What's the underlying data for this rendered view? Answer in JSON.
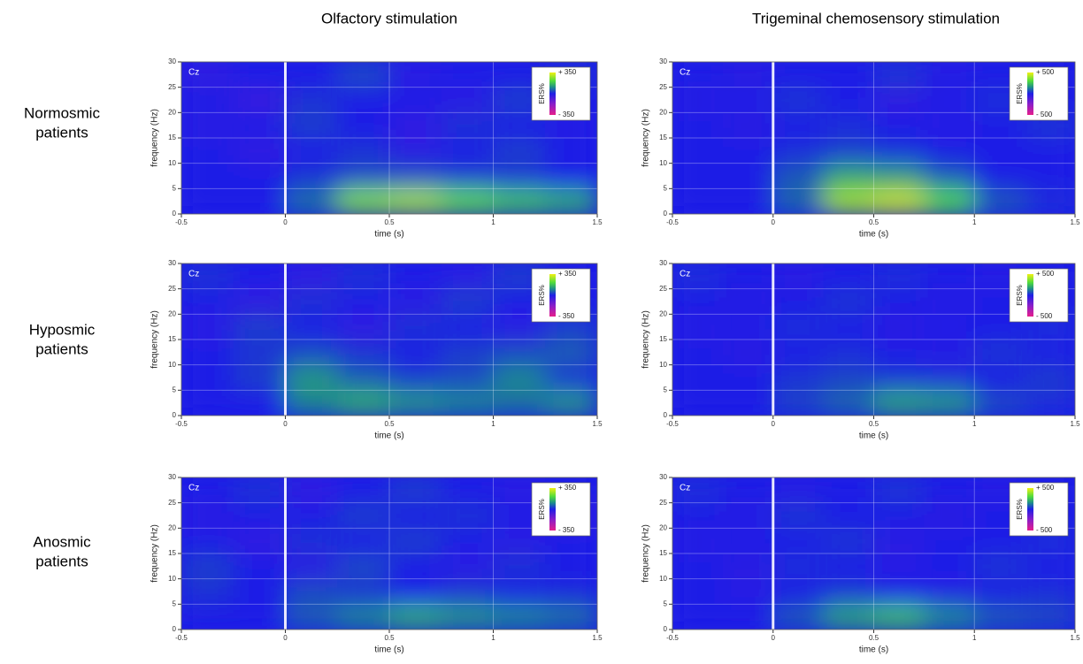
{
  "column_titles": [
    "Olfactory stimulation",
    "Trigeminal chemosensory stimulation"
  ],
  "row_labels": [
    [
      "Normosmic",
      "patients"
    ],
    [
      "Hyposmic",
      "patients"
    ],
    [
      "Anosmic",
      "patients"
    ]
  ],
  "chart_data": [
    {
      "type": "heatmap",
      "annotation": "Cz",
      "xlabel": "time (s)",
      "ylabel": "frequency (Hz)",
      "colorbar_label": "ERS%",
      "clim": [
        -350,
        350
      ],
      "colorbar_ticks": [
        {
          "value": 350,
          "label": "+ 350"
        },
        {
          "value": -350,
          "label": "- 350"
        }
      ],
      "xlim": [
        -0.5,
        1.5
      ],
      "xticks": [
        -0.5,
        0,
        0.5,
        1,
        1.5
      ],
      "ylim": [
        0,
        30
      ],
      "yticks": [
        0,
        5,
        10,
        15,
        20,
        25,
        30
      ],
      "grid": true,
      "x": [
        -0.5,
        -0.25,
        0,
        0.25,
        0.5,
        0.75,
        1,
        1.25,
        1.5
      ],
      "y": [
        0,
        5,
        10,
        15,
        20,
        25,
        30
      ],
      "values": [
        [
          0,
          0,
          80,
          250,
          280,
          220,
          180,
          150
        ],
        [
          0,
          0,
          20,
          40,
          40,
          30,
          20,
          0
        ],
        [
          0,
          -30,
          0,
          20,
          -20,
          0,
          30,
          0
        ],
        [
          -20,
          0,
          30,
          0,
          -30,
          20,
          0,
          -10
        ],
        [
          0,
          -40,
          20,
          0,
          0,
          -20,
          30,
          0
        ],
        [
          -30,
          0,
          0,
          40,
          -20,
          0,
          0,
          20
        ]
      ]
    },
    {
      "type": "heatmap",
      "annotation": "Cz",
      "xlabel": "time (s)",
      "ylabel": "frequency (Hz)",
      "colorbar_label": "ERS%",
      "clim": [
        -500,
        500
      ],
      "colorbar_ticks": [
        {
          "value": 500,
          "label": "+ 500"
        },
        {
          "value": -500,
          "label": "- 500"
        }
      ],
      "xlim": [
        -0.5,
        1.5
      ],
      "xticks": [
        -0.5,
        0,
        0.5,
        1,
        1.5
      ],
      "ylim": [
        0,
        30
      ],
      "yticks": [
        0,
        5,
        10,
        15,
        20,
        25,
        30
      ],
      "grid": true,
      "x": [
        -0.5,
        -0.25,
        0,
        0.25,
        0.5,
        0.75,
        1,
        1.25,
        1.5
      ],
      "y": [
        0,
        5,
        10,
        15,
        20,
        25,
        30
      ],
      "values": [
        [
          0,
          0,
          100,
          400,
          450,
          300,
          80,
          20
        ],
        [
          0,
          0,
          80,
          200,
          180,
          80,
          0,
          0
        ],
        [
          0,
          0,
          20,
          40,
          20,
          0,
          0,
          0
        ],
        [
          0,
          -30,
          0,
          20,
          0,
          -20,
          0,
          30
        ],
        [
          -20,
          0,
          30,
          0,
          -40,
          0,
          20,
          0
        ],
        [
          0,
          -30,
          0,
          0,
          30,
          -20,
          0,
          0
        ]
      ]
    },
    {
      "type": "heatmap",
      "annotation": "Cz",
      "xlabel": "time (s)",
      "ylabel": "frequency (Hz)",
      "colorbar_label": "ERS%",
      "clim": [
        -350,
        350
      ],
      "colorbar_ticks": [
        {
          "value": 350,
          "label": "+ 350"
        },
        {
          "value": -350,
          "label": "- 350"
        }
      ],
      "xlim": [
        -0.5,
        1.5
      ],
      "xticks": [
        -0.5,
        0,
        0.5,
        1,
        1.5
      ],
      "ylim": [
        0,
        30
      ],
      "yticks": [
        0,
        5,
        10,
        15,
        20,
        25,
        30
      ],
      "grid": true,
      "x": [
        -0.5,
        -0.25,
        0,
        0.25,
        0.5,
        0.75,
        1,
        1.25,
        1.5
      ],
      "y": [
        0,
        5,
        10,
        15,
        20,
        25,
        30
      ],
      "values": [
        [
          0,
          0,
          100,
          150,
          120,
          100,
          80,
          120
        ],
        [
          0,
          30,
          120,
          60,
          30,
          40,
          100,
          20
        ],
        [
          0,
          20,
          40,
          20,
          0,
          30,
          40,
          60
        ],
        [
          -20,
          30,
          0,
          -30,
          20,
          0,
          -20,
          30
        ],
        [
          0,
          -30,
          20,
          0,
          -20,
          30,
          0,
          0
        ],
        [
          20,
          0,
          -30,
          20,
          0,
          -20,
          30,
          0
        ]
      ]
    },
    {
      "type": "heatmap",
      "annotation": "Cz",
      "xlabel": "time (s)",
      "ylabel": "frequency (Hz)",
      "colorbar_label": "ERS%",
      "clim": [
        -500,
        500
      ],
      "colorbar_ticks": [
        {
          "value": 500,
          "label": "+ 500"
        },
        {
          "value": -500,
          "label": "- 500"
        }
      ],
      "xlim": [
        -0.5,
        1.5
      ],
      "xticks": [
        -0.5,
        0,
        0.5,
        1,
        1.5
      ],
      "ylim": [
        0,
        30
      ],
      "yticks": [
        0,
        5,
        10,
        15,
        20,
        25,
        30
      ],
      "grid": true,
      "x": [
        -0.5,
        -0.25,
        0,
        0.25,
        0.5,
        0.75,
        1,
        1.25,
        1.5
      ],
      "y": [
        0,
        5,
        10,
        15,
        20,
        25,
        30
      ],
      "values": [
        [
          0,
          0,
          50,
          100,
          200,
          180,
          60,
          20
        ],
        [
          0,
          0,
          30,
          50,
          30,
          20,
          0,
          40
        ],
        [
          0,
          -30,
          0,
          20,
          0,
          -20,
          30,
          0
        ],
        [
          -20,
          0,
          20,
          0,
          -30,
          0,
          0,
          20
        ],
        [
          0,
          -20,
          0,
          30,
          0,
          -20,
          0,
          0
        ],
        [
          20,
          0,
          -30,
          0,
          20,
          0,
          -20,
          0
        ]
      ]
    },
    {
      "type": "heatmap",
      "annotation": "Cz",
      "xlabel": "time (s)",
      "ylabel": "frequency (Hz)",
      "colorbar_label": "ERS%",
      "clim": [
        -350,
        350
      ],
      "colorbar_ticks": [
        {
          "value": 350,
          "label": "+ 350"
        },
        {
          "value": -350,
          "label": "- 350"
        }
      ],
      "xlim": [
        -0.5,
        1.5
      ],
      "xticks": [
        -0.5,
        0,
        0.5,
        1,
        1.5
      ],
      "ylim": [
        0,
        30
      ],
      "yticks": [
        0,
        5,
        10,
        15,
        20,
        25,
        30
      ],
      "grid": true,
      "x": [
        -0.5,
        -0.25,
        0,
        0.25,
        0.5,
        0.75,
        1,
        1.25,
        1.5
      ],
      "y": [
        0,
        5,
        10,
        15,
        20,
        25,
        30
      ],
      "values": [
        [
          0,
          0,
          60,
          100,
          150,
          120,
          100,
          80
        ],
        [
          20,
          0,
          40,
          20,
          0,
          20,
          0,
          10
        ],
        [
          30,
          0,
          -20,
          40,
          0,
          -20,
          20,
          0
        ],
        [
          0,
          -30,
          20,
          0,
          30,
          0,
          -20,
          0
        ],
        [
          -20,
          0,
          0,
          30,
          0,
          20,
          0,
          -30
        ],
        [
          0,
          20,
          -30,
          0,
          30,
          0,
          -20,
          0
        ]
      ]
    },
    {
      "type": "heatmap",
      "annotation": "Cz",
      "xlabel": "time (s)",
      "ylabel": "frequency (Hz)",
      "colorbar_label": "ERS%",
      "clim": [
        -500,
        500
      ],
      "colorbar_ticks": [
        {
          "value": 500,
          "label": "+ 500"
        },
        {
          "value": -500,
          "label": "- 500"
        }
      ],
      "xlim": [
        -0.5,
        1.5
      ],
      "xticks": [
        -0.5,
        0,
        0.5,
        1,
        1.5
      ],
      "ylim": [
        0,
        30
      ],
      "yticks": [
        0,
        5,
        10,
        15,
        20,
        25,
        30
      ],
      "grid": true,
      "x": [
        -0.5,
        -0.25,
        0,
        0.25,
        0.5,
        0.75,
        1,
        1.25,
        1.5
      ],
      "y": [
        0,
        5,
        10,
        15,
        20,
        25,
        30
      ],
      "values": [
        [
          0,
          0,
          80,
          200,
          250,
          150,
          80,
          60
        ],
        [
          0,
          -20,
          0,
          30,
          0,
          -20,
          0,
          20
        ],
        [
          0,
          -30,
          20,
          0,
          -20,
          0,
          30,
          0
        ],
        [
          -20,
          0,
          0,
          30,
          -30,
          0,
          0,
          20
        ],
        [
          0,
          -20,
          30,
          0,
          0,
          -30,
          0,
          0
        ],
        [
          20,
          0,
          -20,
          0,
          30,
          0,
          -20,
          0
        ]
      ]
    }
  ]
}
